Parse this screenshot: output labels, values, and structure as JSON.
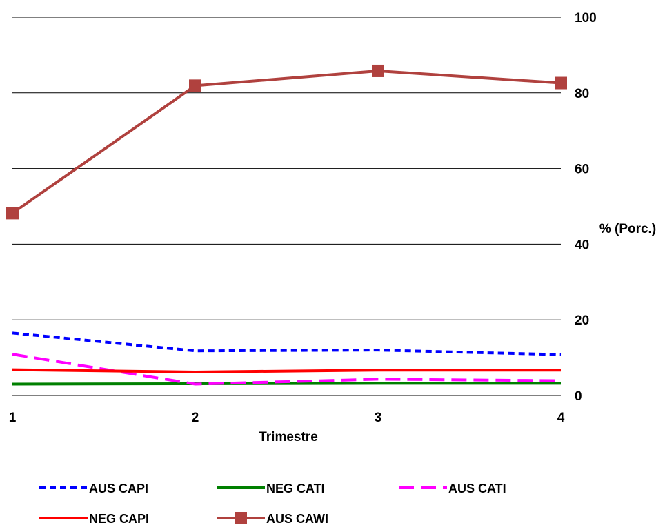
{
  "chart_data": {
    "type": "line",
    "title": "",
    "xlabel": "Trimestre",
    "ylabel": "% (Porc.)",
    "x": [
      1,
      2,
      3,
      4
    ],
    "xticks": [
      "1",
      "2",
      "3",
      "4"
    ],
    "ylim": [
      0,
      100
    ],
    "yticks": [
      "0",
      "20",
      "40",
      "60",
      "80",
      "100"
    ],
    "grid": "horizontal",
    "y_axis_side": "right",
    "legend_position": "bottom",
    "series": [
      {
        "name": "AUS CAPI",
        "values": [
          16.5,
          11.8,
          12.0,
          10.8
        ],
        "color": "#0000FF",
        "style": "short-dash",
        "marker": "none"
      },
      {
        "name": "NEG CATI",
        "values": [
          3.0,
          3.1,
          3.2,
          3.2
        ],
        "color": "#008000",
        "style": "solid",
        "marker": "none"
      },
      {
        "name": "AUS CATI",
        "values": [
          10.9,
          3.0,
          4.3,
          3.9
        ],
        "color": "#FF00FF",
        "style": "long-dash",
        "marker": "none"
      },
      {
        "name": "NEG CAPI",
        "values": [
          6.8,
          6.2,
          6.7,
          6.7
        ],
        "color": "#FF0000",
        "style": "solid",
        "marker": "none"
      },
      {
        "name": "AUS CAWI",
        "values": [
          48.2,
          81.9,
          85.8,
          82.6
        ],
        "color": "#B0413E",
        "style": "solid",
        "marker": "square"
      }
    ]
  }
}
